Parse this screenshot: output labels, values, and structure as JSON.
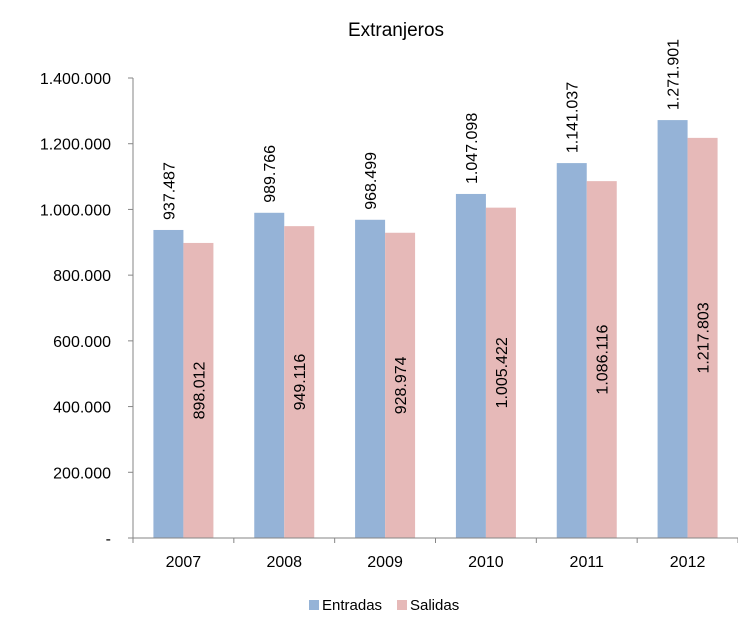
{
  "chart_data": {
    "type": "bar",
    "title": "Extranjeros",
    "categories": [
      "2007",
      "2008",
      "2009",
      "2010",
      "2011",
      "2012"
    ],
    "series": [
      {
        "name": "Entradas",
        "color": "#95b3d7",
        "values": [
          937487,
          989766,
          968499,
          1047098,
          1141037,
          1271901
        ],
        "labels": [
          "937.487",
          "989.766",
          "968.499",
          "1.047.098",
          "1.141.037",
          "1.271.901"
        ]
      },
      {
        "name": "Salidas",
        "color": "#e6b9b8",
        "values": [
          898012,
          949116,
          928974,
          1005422,
          1086116,
          1217803
        ],
        "labels": [
          "898.012",
          "949.116",
          "928.974",
          "1.005.422",
          "1.086.116",
          "1.217.803"
        ]
      }
    ],
    "ylim": [
      0,
      1400000
    ],
    "yticks": [
      0,
      200000,
      400000,
      600000,
      800000,
      1000000,
      1200000,
      1400000
    ],
    "ytick_labels": [
      "-",
      "200.000",
      "400.000",
      "600.000",
      "800.000",
      "1.000.000",
      "1.200.000",
      "1.400.000"
    ],
    "grid": false,
    "legend_position": "bottom"
  }
}
